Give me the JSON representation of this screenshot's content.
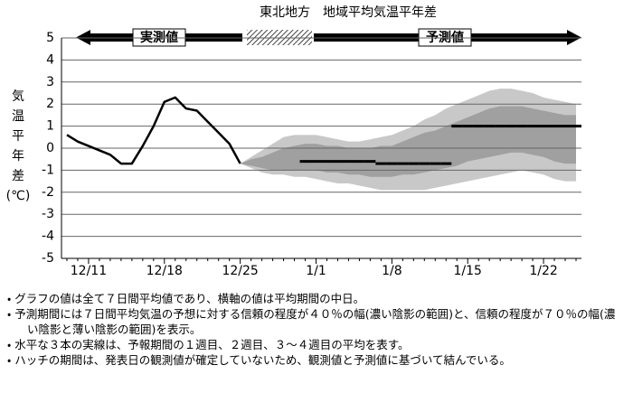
{
  "chart_data": {
    "type": "line",
    "title": "東北地方　地域平均気温平年差",
    "observed_label": "実測値",
    "forecast_label": "予測値",
    "y_label": [
      "気",
      "温",
      "平",
      "年",
      "差",
      "(℃)"
    ],
    "categories": [
      null,
      null,
      "12/11",
      null,
      null,
      null,
      null,
      null,
      null,
      "12/18",
      null,
      null,
      null,
      null,
      null,
      null,
      "12/25",
      null,
      null,
      null,
      null,
      null,
      null,
      "1/1",
      null,
      null,
      null,
      null,
      null,
      null,
      "1/8",
      null,
      null,
      null,
      null,
      null,
      null,
      "1/15",
      null,
      null,
      null,
      null,
      null,
      null,
      "1/22",
      null,
      null,
      null
    ],
    "ylim": [
      -5,
      5
    ],
    "yticks": [
      -5,
      -4,
      -3,
      -2,
      -1,
      0,
      1,
      2,
      3,
      4,
      5
    ],
    "grid": true,
    "observed": {
      "color": "#000000",
      "values": [
        0.6,
        0.3,
        0.1,
        -0.1,
        -0.3,
        -0.7,
        -0.7,
        0.1,
        1.0,
        2.1,
        2.3,
        1.8,
        1.7,
        1.2,
        0.7,
        0.2,
        -0.7,
        null,
        null,
        null,
        null,
        null,
        null,
        null,
        null,
        null,
        null,
        null,
        null,
        null,
        null,
        null,
        null,
        null,
        null,
        null,
        null,
        null,
        null,
        null,
        null,
        null,
        null,
        null,
        null,
        null,
        null,
        null
      ]
    },
    "bands": [
      {
        "color": "#c8c8c8",
        "upper": [
          null,
          null,
          null,
          null,
          null,
          null,
          null,
          null,
          null,
          null,
          null,
          null,
          null,
          null,
          null,
          null,
          -0.7,
          -0.4,
          -0.1,
          0.2,
          0.5,
          0.6,
          0.6,
          0.6,
          0.5,
          0.4,
          0.3,
          0.3,
          0.4,
          0.5,
          0.6,
          0.8,
          1.0,
          1.3,
          1.5,
          1.8,
          2.0,
          2.2,
          2.4,
          2.6,
          2.7,
          2.7,
          2.6,
          2.5,
          2.3,
          2.2,
          2.1,
          2.0
        ],
        "lower": [
          null,
          null,
          null,
          null,
          null,
          null,
          null,
          null,
          null,
          null,
          null,
          null,
          null,
          null,
          null,
          null,
          -0.7,
          -0.9,
          -1.1,
          -1.2,
          -1.2,
          -1.3,
          -1.3,
          -1.4,
          -1.5,
          -1.6,
          -1.6,
          -1.7,
          -1.8,
          -1.9,
          -1.9,
          -1.9,
          -1.9,
          -1.9,
          -1.8,
          -1.7,
          -1.6,
          -1.5,
          -1.4,
          -1.3,
          -1.2,
          -1.1,
          -1.0,
          -1.1,
          -1.2,
          -1.4,
          -1.5,
          -1.5
        ]
      },
      {
        "color": "#a0a0a0",
        "upper": [
          null,
          null,
          null,
          null,
          null,
          null,
          null,
          null,
          null,
          null,
          null,
          null,
          null,
          null,
          null,
          null,
          -0.7,
          -0.5,
          -0.4,
          -0.2,
          0.0,
          0.1,
          0.2,
          0.2,
          0.1,
          0.1,
          0.0,
          0.0,
          0.0,
          0.1,
          0.1,
          0.3,
          0.5,
          0.7,
          0.8,
          1.0,
          1.2,
          1.4,
          1.6,
          1.8,
          1.9,
          1.9,
          1.9,
          1.8,
          1.7,
          1.6,
          1.5,
          1.5
        ],
        "lower": [
          null,
          null,
          null,
          null,
          null,
          null,
          null,
          null,
          null,
          null,
          null,
          null,
          null,
          null,
          null,
          null,
          -0.7,
          -0.8,
          -0.9,
          -1.0,
          -1.0,
          -1.0,
          -1.0,
          -1.0,
          -1.1,
          -1.1,
          -1.2,
          -1.2,
          -1.3,
          -1.3,
          -1.3,
          -1.2,
          -1.2,
          -1.1,
          -1.0,
          -0.9,
          -0.8,
          -0.6,
          -0.5,
          -0.4,
          -0.3,
          -0.2,
          -0.2,
          -0.3,
          -0.4,
          -0.6,
          -0.7,
          -0.7
        ]
      }
    ],
    "weekly_means": [
      {
        "color": "#000000",
        "values": [
          null,
          null,
          null,
          null,
          null,
          null,
          null,
          null,
          null,
          null,
          null,
          null,
          null,
          null,
          null,
          null,
          null,
          null,
          null,
          null,
          null,
          null,
          -0.6,
          -0.6,
          -0.6,
          -0.6,
          -0.6,
          -0.6,
          -0.6,
          null,
          null,
          null,
          null,
          null,
          null,
          null,
          null,
          null,
          null,
          null,
          null,
          null,
          null,
          null,
          null,
          null,
          null,
          null
        ]
      },
      {
        "color": "#000000",
        "values": [
          null,
          null,
          null,
          null,
          null,
          null,
          null,
          null,
          null,
          null,
          null,
          null,
          null,
          null,
          null,
          null,
          null,
          null,
          null,
          null,
          null,
          null,
          null,
          null,
          null,
          null,
          null,
          null,
          null,
          -0.7,
          -0.7,
          -0.7,
          -0.7,
          -0.7,
          -0.7,
          -0.7,
          null,
          null,
          null,
          null,
          null,
          null,
          null,
          null,
          null,
          null,
          null,
          null
        ]
      },
      {
        "color": "#000000",
        "values": [
          null,
          null,
          null,
          null,
          null,
          null,
          null,
          null,
          null,
          null,
          null,
          null,
          null,
          null,
          null,
          null,
          null,
          null,
          null,
          null,
          null,
          null,
          null,
          null,
          null,
          null,
          null,
          null,
          null,
          null,
          null,
          null,
          null,
          null,
          null,
          null,
          1.0,
          1.0,
          1.0,
          1.0,
          1.0,
          1.0,
          1.0,
          1.0,
          1.0,
          1.0,
          1.0,
          1.0
        ]
      }
    ],
    "notes": [
      "・ グラフの値は全て７日間平均値であり、横軸の値は平均期間の中日。",
      "・ 予測期間には７日間平均気温の予想に対する信頼の程度が４０％の幅(濃い陰影の範囲)と、信頼の程度が７０％の幅(濃い陰影と薄い陰影の範囲)を表示。",
      "・ 水平な３本の実線は、予報期間の１週目、２週目、３～４週目の平均を表す。",
      "・ ハッチの期間は、発表日の観測値が確定していないため、観測値と予測値に基づいて結んでいる。"
    ]
  }
}
